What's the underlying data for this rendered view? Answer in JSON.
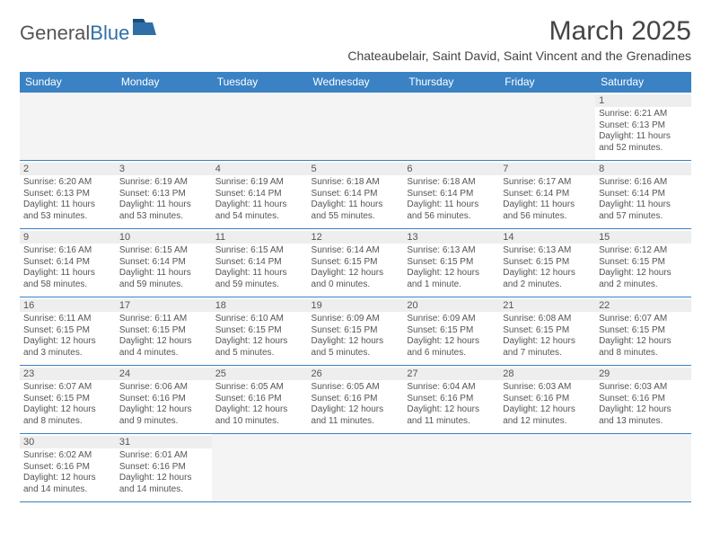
{
  "brand": {
    "left": "General",
    "right": "Blue",
    "logo_color": "#2f6fa7",
    "text_color": "#555555"
  },
  "title": "March 2025",
  "location": "Chateaubelair, Saint David, Saint Vincent and the Grenadines",
  "colors": {
    "header_bg": "#3a82c4",
    "header_text": "#ffffff",
    "cell_border": "#3a82c4",
    "daynum_bg": "#eeeeee",
    "empty_bg": "#f4f4f4",
    "body_text": "#555555"
  },
  "weekdays": [
    "Sunday",
    "Monday",
    "Tuesday",
    "Wednesday",
    "Thursday",
    "Friday",
    "Saturday"
  ],
  "weeks": [
    [
      null,
      null,
      null,
      null,
      null,
      null,
      {
        "n": "1",
        "sunrise": "6:21 AM",
        "sunset": "6:13 PM",
        "daylight": "11 hours and 52 minutes."
      }
    ],
    [
      {
        "n": "2",
        "sunrise": "6:20 AM",
        "sunset": "6:13 PM",
        "daylight": "11 hours and 53 minutes."
      },
      {
        "n": "3",
        "sunrise": "6:19 AM",
        "sunset": "6:13 PM",
        "daylight": "11 hours and 53 minutes."
      },
      {
        "n": "4",
        "sunrise": "6:19 AM",
        "sunset": "6:14 PM",
        "daylight": "11 hours and 54 minutes."
      },
      {
        "n": "5",
        "sunrise": "6:18 AM",
        "sunset": "6:14 PM",
        "daylight": "11 hours and 55 minutes."
      },
      {
        "n": "6",
        "sunrise": "6:18 AM",
        "sunset": "6:14 PM",
        "daylight": "11 hours and 56 minutes."
      },
      {
        "n": "7",
        "sunrise": "6:17 AM",
        "sunset": "6:14 PM",
        "daylight": "11 hours and 56 minutes."
      },
      {
        "n": "8",
        "sunrise": "6:16 AM",
        "sunset": "6:14 PM",
        "daylight": "11 hours and 57 minutes."
      }
    ],
    [
      {
        "n": "9",
        "sunrise": "6:16 AM",
        "sunset": "6:14 PM",
        "daylight": "11 hours and 58 minutes."
      },
      {
        "n": "10",
        "sunrise": "6:15 AM",
        "sunset": "6:14 PM",
        "daylight": "11 hours and 59 minutes."
      },
      {
        "n": "11",
        "sunrise": "6:15 AM",
        "sunset": "6:14 PM",
        "daylight": "11 hours and 59 minutes."
      },
      {
        "n": "12",
        "sunrise": "6:14 AM",
        "sunset": "6:15 PM",
        "daylight": "12 hours and 0 minutes."
      },
      {
        "n": "13",
        "sunrise": "6:13 AM",
        "sunset": "6:15 PM",
        "daylight": "12 hours and 1 minute."
      },
      {
        "n": "14",
        "sunrise": "6:13 AM",
        "sunset": "6:15 PM",
        "daylight": "12 hours and 2 minutes."
      },
      {
        "n": "15",
        "sunrise": "6:12 AM",
        "sunset": "6:15 PM",
        "daylight": "12 hours and 2 minutes."
      }
    ],
    [
      {
        "n": "16",
        "sunrise": "6:11 AM",
        "sunset": "6:15 PM",
        "daylight": "12 hours and 3 minutes."
      },
      {
        "n": "17",
        "sunrise": "6:11 AM",
        "sunset": "6:15 PM",
        "daylight": "12 hours and 4 minutes."
      },
      {
        "n": "18",
        "sunrise": "6:10 AM",
        "sunset": "6:15 PM",
        "daylight": "12 hours and 5 minutes."
      },
      {
        "n": "19",
        "sunrise": "6:09 AM",
        "sunset": "6:15 PM",
        "daylight": "12 hours and 5 minutes."
      },
      {
        "n": "20",
        "sunrise": "6:09 AM",
        "sunset": "6:15 PM",
        "daylight": "12 hours and 6 minutes."
      },
      {
        "n": "21",
        "sunrise": "6:08 AM",
        "sunset": "6:15 PM",
        "daylight": "12 hours and 7 minutes."
      },
      {
        "n": "22",
        "sunrise": "6:07 AM",
        "sunset": "6:15 PM",
        "daylight": "12 hours and 8 minutes."
      }
    ],
    [
      {
        "n": "23",
        "sunrise": "6:07 AM",
        "sunset": "6:15 PM",
        "daylight": "12 hours and 8 minutes."
      },
      {
        "n": "24",
        "sunrise": "6:06 AM",
        "sunset": "6:16 PM",
        "daylight": "12 hours and 9 minutes."
      },
      {
        "n": "25",
        "sunrise": "6:05 AM",
        "sunset": "6:16 PM",
        "daylight": "12 hours and 10 minutes."
      },
      {
        "n": "26",
        "sunrise": "6:05 AM",
        "sunset": "6:16 PM",
        "daylight": "12 hours and 11 minutes."
      },
      {
        "n": "27",
        "sunrise": "6:04 AM",
        "sunset": "6:16 PM",
        "daylight": "12 hours and 11 minutes."
      },
      {
        "n": "28",
        "sunrise": "6:03 AM",
        "sunset": "6:16 PM",
        "daylight": "12 hours and 12 minutes."
      },
      {
        "n": "29",
        "sunrise": "6:03 AM",
        "sunset": "6:16 PM",
        "daylight": "12 hours and 13 minutes."
      }
    ],
    [
      {
        "n": "30",
        "sunrise": "6:02 AM",
        "sunset": "6:16 PM",
        "daylight": "12 hours and 14 minutes."
      },
      {
        "n": "31",
        "sunrise": "6:01 AM",
        "sunset": "6:16 PM",
        "daylight": "12 hours and 14 minutes."
      },
      null,
      null,
      null,
      null,
      null
    ]
  ],
  "labels": {
    "sunrise": "Sunrise:",
    "sunset": "Sunset:",
    "daylight": "Daylight:"
  }
}
